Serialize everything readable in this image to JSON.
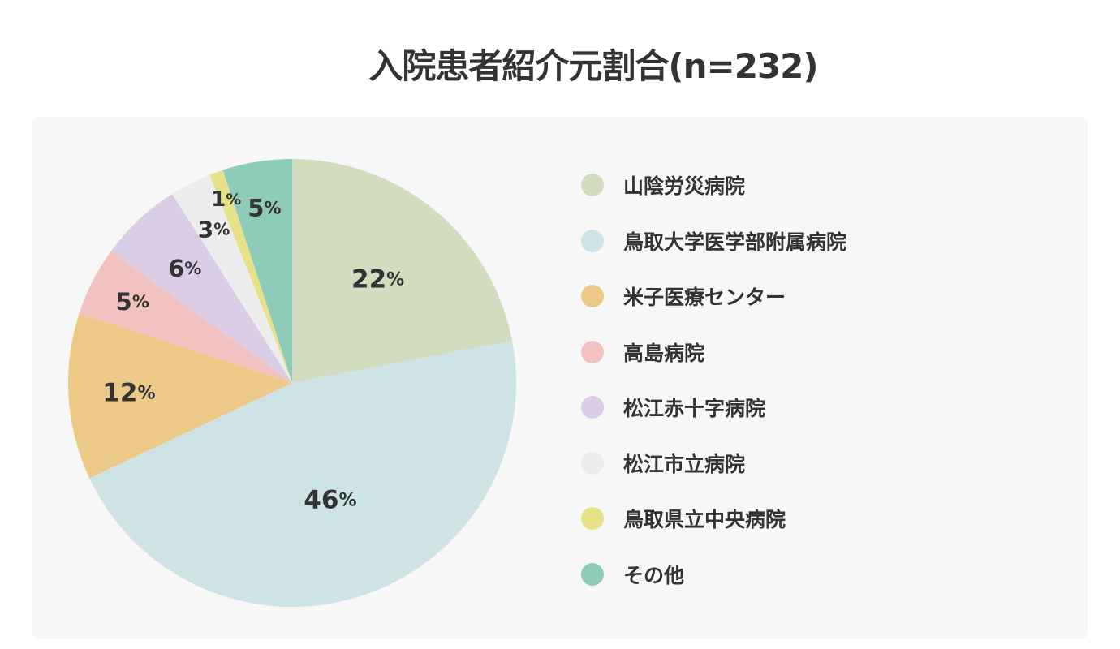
{
  "chart_data": {
    "type": "pie",
    "title": "入院患者紹介元割合(n=232)",
    "slices": [
      {
        "name": "山陰労災病院",
        "value": 22,
        "label": "22",
        "color": "#d2ddc0"
      },
      {
        "name": "鳥取大学医学部附属病院",
        "value": 46,
        "label": "46",
        "color": "#cde3e6"
      },
      {
        "name": "米子医療センター",
        "value": 12,
        "label": "12",
        "color": "#edc987"
      },
      {
        "name": "高島病院",
        "value": 5,
        "label": "5",
        "color": "#f2c2c0"
      },
      {
        "name": "松江赤十字病院",
        "value": 6,
        "label": "6",
        "color": "#dccde6"
      },
      {
        "name": "松江市立病院",
        "value": 3,
        "label": "3",
        "color": "#ededed"
      },
      {
        "name": "鳥取県立中央病院",
        "value": 1,
        "label": "1",
        "color": "#e7e18a"
      },
      {
        "name": "その他",
        "value": 5,
        "label": "5",
        "color": "#8ecbb8"
      }
    ],
    "unit": "%",
    "legend": "right"
  }
}
